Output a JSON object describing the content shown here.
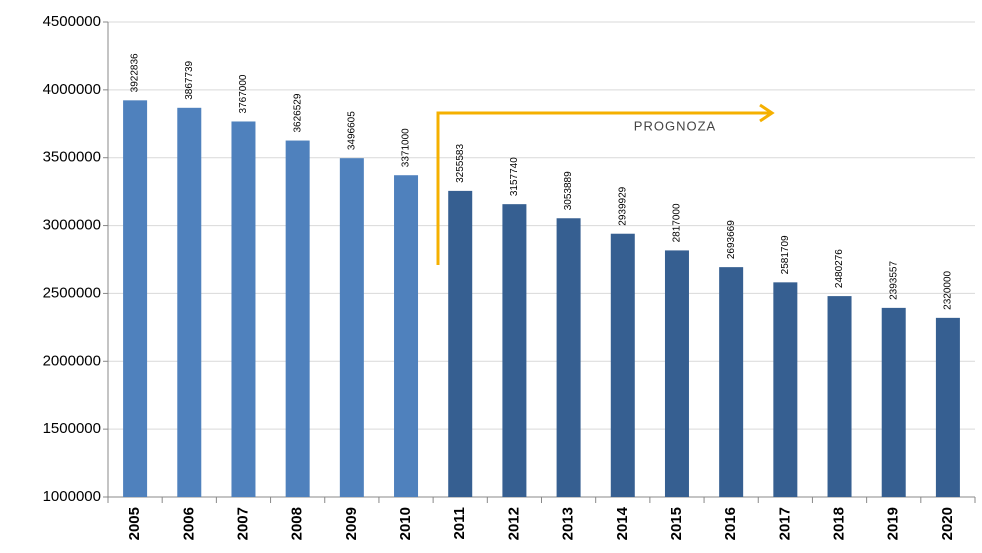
{
  "chart_data": {
    "type": "bar",
    "categories": [
      "2005",
      "2006",
      "2007",
      "2008",
      "2009",
      "2010",
      "2011",
      "2012",
      "2013",
      "2014",
      "2015",
      "2016",
      "2017",
      "2018",
      "2019",
      "2020"
    ],
    "values": [
      3922836,
      3867739,
      3767000,
      3626529,
      3496605,
      3371000,
      3255583,
      3157740,
      3053889,
      2939929,
      2817000,
      2693669,
      2581709,
      2480276,
      2393557,
      2320000
    ],
    "colors": [
      "#4f81bd",
      "#4f81bd",
      "#4f81bd",
      "#4f81bd",
      "#4f81bd",
      "#4f81bd",
      "#365f91",
      "#365f91",
      "#365f91",
      "#365f91",
      "#365f91",
      "#365f91",
      "#365f91",
      "#365f91",
      "#365f91",
      "#365f91"
    ],
    "ylim": [
      1000000,
      4500000
    ],
    "yticks": [
      1000000,
      1500000,
      2000000,
      2500000,
      3000000,
      3500000,
      4000000,
      4500000
    ],
    "grid": true,
    "annotation": "PROGNOZA"
  }
}
